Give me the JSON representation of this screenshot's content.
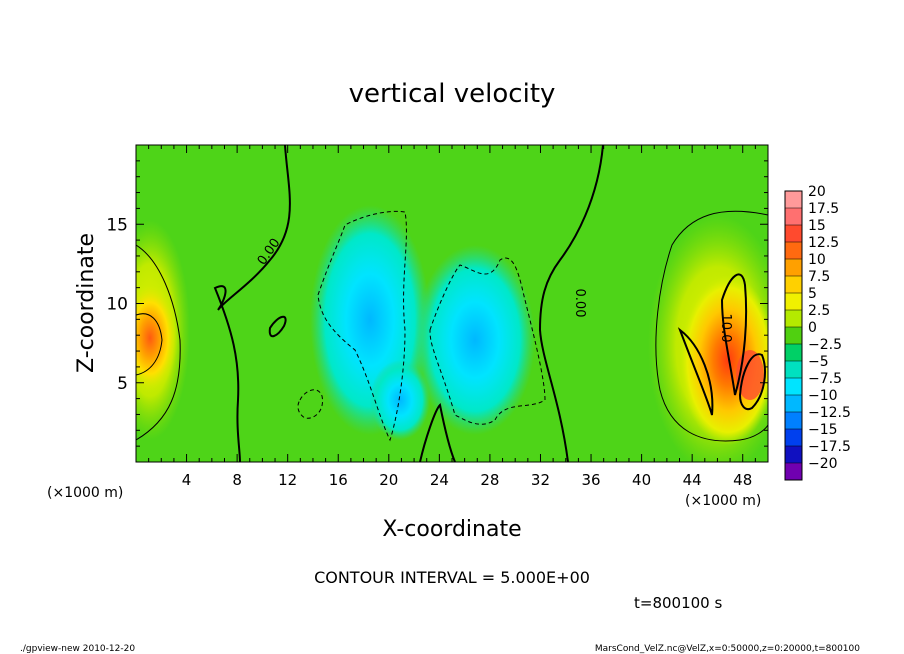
{
  "chart_data": {
    "type": "heatmap",
    "title": "vertical velocity",
    "xlabel": "X-coordinate",
    "ylabel": "Z-coordinate",
    "x_unit_left": "(×1000 m)",
    "x_unit_right": "(×1000 m)",
    "xlim": [
      0,
      50
    ],
    "ylim": [
      0,
      20
    ],
    "x_ticks": [
      4,
      8,
      12,
      16,
      20,
      24,
      28,
      32,
      36,
      40,
      44,
      48
    ],
    "x_tick_labels": [
      "4",
      "8",
      "12",
      "16",
      "20",
      "24",
      "28",
      "32",
      "36",
      "40",
      "44",
      "48"
    ],
    "y_ticks": [
      5,
      10,
      15
    ],
    "y_tick_labels": [
      "5",
      "10",
      "15"
    ],
    "colorbar": {
      "min": -20,
      "max": 20,
      "step": 2.5,
      "labels": [
        "20",
        "17.5",
        "15",
        "12.5",
        "10",
        "7.5",
        "5",
        "2.5",
        "0",
        "−2.5",
        "−5",
        "−7.5",
        "−10",
        "−12.5",
        "−15",
        "−17.5",
        "−20"
      ],
      "colors": [
        "#ff9a9a",
        "#ff7070",
        "#ff4a2e",
        "#ff6a10",
        "#ffa000",
        "#ffd000",
        "#f0f000",
        "#b4ea00",
        "#50d010",
        "#00d066",
        "#00e0c0",
        "#00e4ff",
        "#00b8ff",
        "#0080ff",
        "#0040ee",
        "#1010c0",
        "#7000b0"
      ]
    },
    "contour_labels": [
      "0.00",
      "0.00",
      "10.0"
    ],
    "contour_interval_text": "CONTOUR INTERVAL = 5.000E+00",
    "time_text": "t=800100 s"
  },
  "footer": {
    "left": "./gpview-new 2010-12-20",
    "right": "MarsCond_VelZ.nc@VelZ,x=0:50000,z=0:20000,t=800100"
  }
}
